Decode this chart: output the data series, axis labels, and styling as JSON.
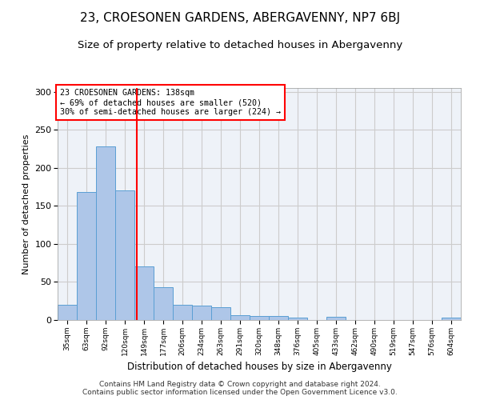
{
  "title1": "23, CROESONEN GARDENS, ABERGAVENNY, NP7 6BJ",
  "title2": "Size of property relative to detached houses in Abergavenny",
  "xlabel": "Distribution of detached houses by size in Abergavenny",
  "ylabel": "Number of detached properties",
  "footer1": "Contains HM Land Registry data © Crown copyright and database right 2024.",
  "footer2": "Contains public sector information licensed under the Open Government Licence v3.0.",
  "bar_labels": [
    "35sqm",
    "63sqm",
    "92sqm",
    "120sqm",
    "149sqm",
    "177sqm",
    "206sqm",
    "234sqm",
    "263sqm",
    "291sqm",
    "320sqm",
    "348sqm",
    "376sqm",
    "405sqm",
    "433sqm",
    "462sqm",
    "490sqm",
    "519sqm",
    "547sqm",
    "576sqm",
    "604sqm"
  ],
  "bar_values": [
    20,
    168,
    228,
    170,
    70,
    43,
    20,
    19,
    17,
    6,
    5,
    5,
    3,
    0,
    4,
    0,
    0,
    0,
    0,
    0,
    3
  ],
  "bar_color": "#aec6e8",
  "bar_edge_color": "#5a9fd4",
  "marker_color": "red",
  "annotation_title": "23 CROESONEN GARDENS: 138sqm",
  "annotation_line1": "← 69% of detached houses are smaller (520)",
  "annotation_line2": "30% of semi-detached houses are larger (224) →",
  "annotation_box_color": "white",
  "annotation_box_edge_color": "red",
  "ylim": [
    0,
    305
  ],
  "yticks": [
    0,
    50,
    100,
    150,
    200,
    250,
    300
  ],
  "grid_color": "#cccccc",
  "bg_color": "#eef2f8",
  "title1_fontsize": 11,
  "title2_fontsize": 9.5
}
